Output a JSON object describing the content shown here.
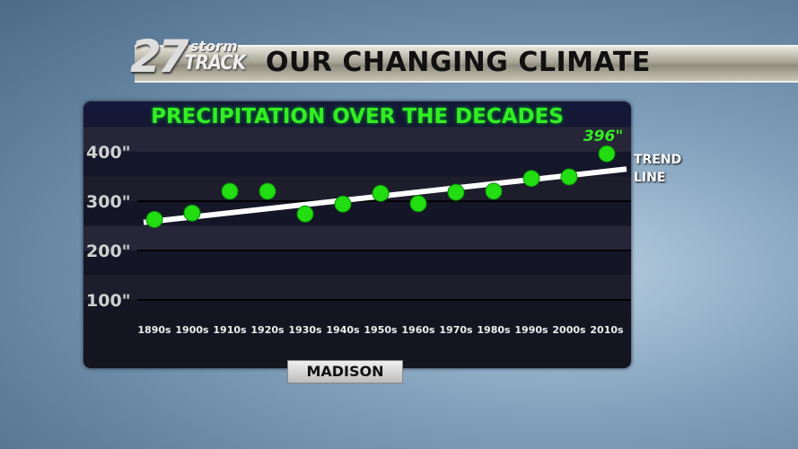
{
  "header": {
    "logo_number": "27",
    "logo_storm": "storm",
    "logo_track": "TRACK",
    "headline": "OUR CHANGING CLIMATE"
  },
  "location": "MADISON",
  "trend_label": [
    "TREND",
    "LINE"
  ],
  "chart_data": {
    "type": "scatter",
    "title": "PRECIPITATION OVER THE DECADES",
    "categories": [
      "1890s",
      "1900s",
      "1910s",
      "1920s",
      "1930s",
      "1940s",
      "1950s",
      "1960s",
      "1970s",
      "1980s",
      "1990s",
      "2000s",
      "2010s"
    ],
    "values": [
      263,
      276,
      320,
      320,
      274,
      294,
      316,
      295,
      318,
      320,
      346,
      349,
      396
    ],
    "annotation": {
      "category": "2010s",
      "text": "396\""
    },
    "yticks": [
      100,
      200,
      300,
      400
    ],
    "ytick_labels": [
      "100\"",
      "200\"",
      "300\"",
      "400\""
    ],
    "ylim": [
      0,
      430
    ],
    "trend_line": {
      "start": 257,
      "end": 365,
      "label": "TREND LINE"
    },
    "colors": {
      "points": "#22dd11",
      "trend": "#ffffff",
      "title": "#33ee22"
    },
    "grid": true
  }
}
